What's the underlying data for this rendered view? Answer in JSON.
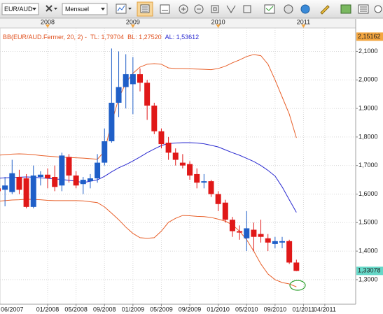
{
  "toolbar": {
    "symbol": "EUR/AUD",
    "period": "Mensuel"
  },
  "chart_data": {
    "type": "candlestick",
    "legend": [
      "BB(EUR/AUD.Fermer, 20, 2) -",
      "TL: 1,79704",
      "BL: 1,27520",
      "AL: 1,53612"
    ],
    "legend_colors": [
      "#e0501e",
      "#e0501e",
      "#e0501e",
      "#2a2ad0"
    ],
    "categories": [
      "06/2007",
      null,
      null,
      null,
      null,
      null,
      null,
      "01/2008",
      null,
      null,
      null,
      "05/2008",
      null,
      null,
      null,
      "09/2008",
      null,
      null,
      null,
      "01/2009",
      null,
      null,
      null,
      "05/2009",
      null,
      null,
      null,
      "09/2009",
      null,
      null,
      null,
      "01/2010",
      null,
      null,
      null,
      "05/2010",
      null,
      null,
      null,
      "09/2010",
      null,
      null,
      null,
      "01/2011",
      null,
      null,
      "04/2011"
    ],
    "years": [
      "2008",
      "2009",
      "2010",
      "2011"
    ],
    "open": [
      1.62,
      1.615,
      1.607,
      1.66,
      1.655,
      1.555,
      1.66,
      1.668,
      1.66,
      1.63,
      1.73,
      1.665,
      1.635,
      1.645,
      1.655,
      1.71,
      1.785,
      1.92,
      1.975,
      1.985,
      2.02,
      1.99,
      1.91,
      1.82,
      1.78,
      1.745,
      1.71,
      1.705,
      1.67,
      1.64,
      1.645,
      1.6,
      1.57,
      1.51,
      1.47,
      1.445,
      1.475,
      1.46,
      1.445,
      1.425,
      1.43,
      1.435,
      1.36,
      null,
      null,
      null,
      null
    ],
    "high": [
      1.64,
      1.66,
      1.72,
      1.685,
      1.67,
      1.7,
      1.68,
      1.69,
      1.7,
      1.745,
      1.74,
      1.68,
      1.66,
      1.67,
      1.74,
      1.83,
      2.11,
      2.1,
      2.09,
      2.08,
      2.04,
      2.0,
      1.92,
      1.83,
      1.8,
      1.76,
      1.74,
      1.715,
      1.69,
      1.67,
      1.65,
      1.61,
      1.58,
      1.52,
      1.49,
      1.54,
      1.5,
      1.51,
      1.46,
      1.45,
      1.45,
      1.44,
      1.37,
      null,
      null,
      null,
      null
    ],
    "low": [
      1.6,
      1.557,
      1.6,
      1.6,
      1.55,
      1.55,
      1.63,
      1.62,
      1.61,
      1.61,
      1.64,
      1.62,
      1.6,
      1.62,
      1.64,
      1.7,
      1.78,
      1.87,
      1.9,
      1.88,
      1.96,
      1.86,
      1.81,
      1.76,
      1.72,
      1.7,
      1.69,
      1.65,
      1.62,
      1.62,
      1.59,
      1.54,
      1.5,
      1.45,
      1.44,
      1.4,
      1.4,
      1.43,
      1.4,
      1.41,
      1.41,
      1.355,
      1.33,
      null,
      null,
      null,
      null
    ],
    "close": [
      1.61,
      1.63,
      1.673,
      1.615,
      1.555,
      1.665,
      1.668,
      1.655,
      1.625,
      1.735,
      1.665,
      1.63,
      1.65,
      1.655,
      1.71,
      1.785,
      1.92,
      1.975,
      2.02,
      2.02,
      1.99,
      1.91,
      1.82,
      1.775,
      1.745,
      1.72,
      1.7,
      1.665,
      1.64,
      1.645,
      1.6,
      1.565,
      1.51,
      1.47,
      1.465,
      1.48,
      1.45,
      1.45,
      1.43,
      1.435,
      1.435,
      1.36,
      1.33078,
      null,
      null,
      null,
      null
    ],
    "up_color": "#1f5fc8",
    "down_color": "#e01818",
    "overlays": [
      {
        "color": "#e8602a",
        "values": [
          1.736,
          1.738,
          1.74,
          1.741,
          1.74,
          1.738,
          1.735,
          1.733,
          1.731,
          1.729,
          1.728,
          1.727,
          1.726,
          1.724,
          1.722,
          1.75,
          1.85,
          1.935,
          1.99,
          2.023,
          2.045,
          2.055,
          2.057,
          2.055,
          2.042,
          2.04,
          2.04,
          2.039,
          2.038,
          2.037,
          2.036,
          2.04,
          2.048,
          2.06,
          2.07,
          2.082,
          2.089,
          2.085,
          2.055,
          2.0,
          1.94,
          1.88,
          1.797,
          null,
          null,
          null,
          null
        ]
      },
      {
        "color": "#2a2ad0",
        "values": [
          1.655,
          1.657,
          1.658,
          1.659,
          1.66,
          1.659,
          1.657,
          1.655,
          1.653,
          1.651,
          1.648,
          1.645,
          1.64,
          1.645,
          1.65,
          1.662,
          1.678,
          1.692,
          1.703,
          1.716,
          1.73,
          1.745,
          1.758,
          1.77,
          1.777,
          1.779,
          1.78,
          1.78,
          1.779,
          1.776,
          1.771,
          1.765,
          1.755,
          1.745,
          1.736,
          1.725,
          1.714,
          1.7,
          1.683,
          1.663,
          1.625,
          1.58,
          1.536,
          null,
          null,
          null,
          null
        ]
      },
      {
        "color": "#e8602a",
        "values": [
          1.575,
          1.577,
          1.579,
          1.58,
          1.582,
          1.581,
          1.58,
          1.578,
          1.577,
          1.577,
          1.577,
          1.577,
          1.576,
          1.573,
          1.57,
          1.555,
          1.533,
          1.51,
          1.484,
          1.462,
          1.447,
          1.445,
          1.447,
          1.47,
          1.501,
          1.515,
          1.525,
          1.524,
          1.522,
          1.521,
          1.518,
          1.512,
          1.505,
          1.492,
          1.47,
          1.44,
          1.4,
          1.355,
          1.32,
          1.3,
          1.29,
          1.285,
          1.275,
          null,
          null,
          null,
          null
        ]
      }
    ],
    "ylim": [
      1.214,
      2.182
    ],
    "yticks": [
      {
        "value": 1.3,
        "label": "1,3000"
      },
      {
        "value": 1.4,
        "label": "1,4000"
      },
      {
        "value": 1.5,
        "label": "1,5000"
      },
      {
        "value": 1.6,
        "label": "1,6000"
      },
      {
        "value": 1.7,
        "label": "1,7000"
      },
      {
        "value": 1.8,
        "label": "1,8000"
      },
      {
        "value": 1.9,
        "label": "1,9000"
      },
      {
        "value": 2.0,
        "label": "2,0000"
      },
      {
        "value": 2.1,
        "label": "2,1000"
      }
    ],
    "price_markers": [
      {
        "value": 2.15162,
        "label": "2,15162",
        "color": "#f4a640"
      },
      {
        "value": 1.33078,
        "label": "1,33078",
        "color": "#66d8c8"
      }
    ],
    "grid": true
  }
}
